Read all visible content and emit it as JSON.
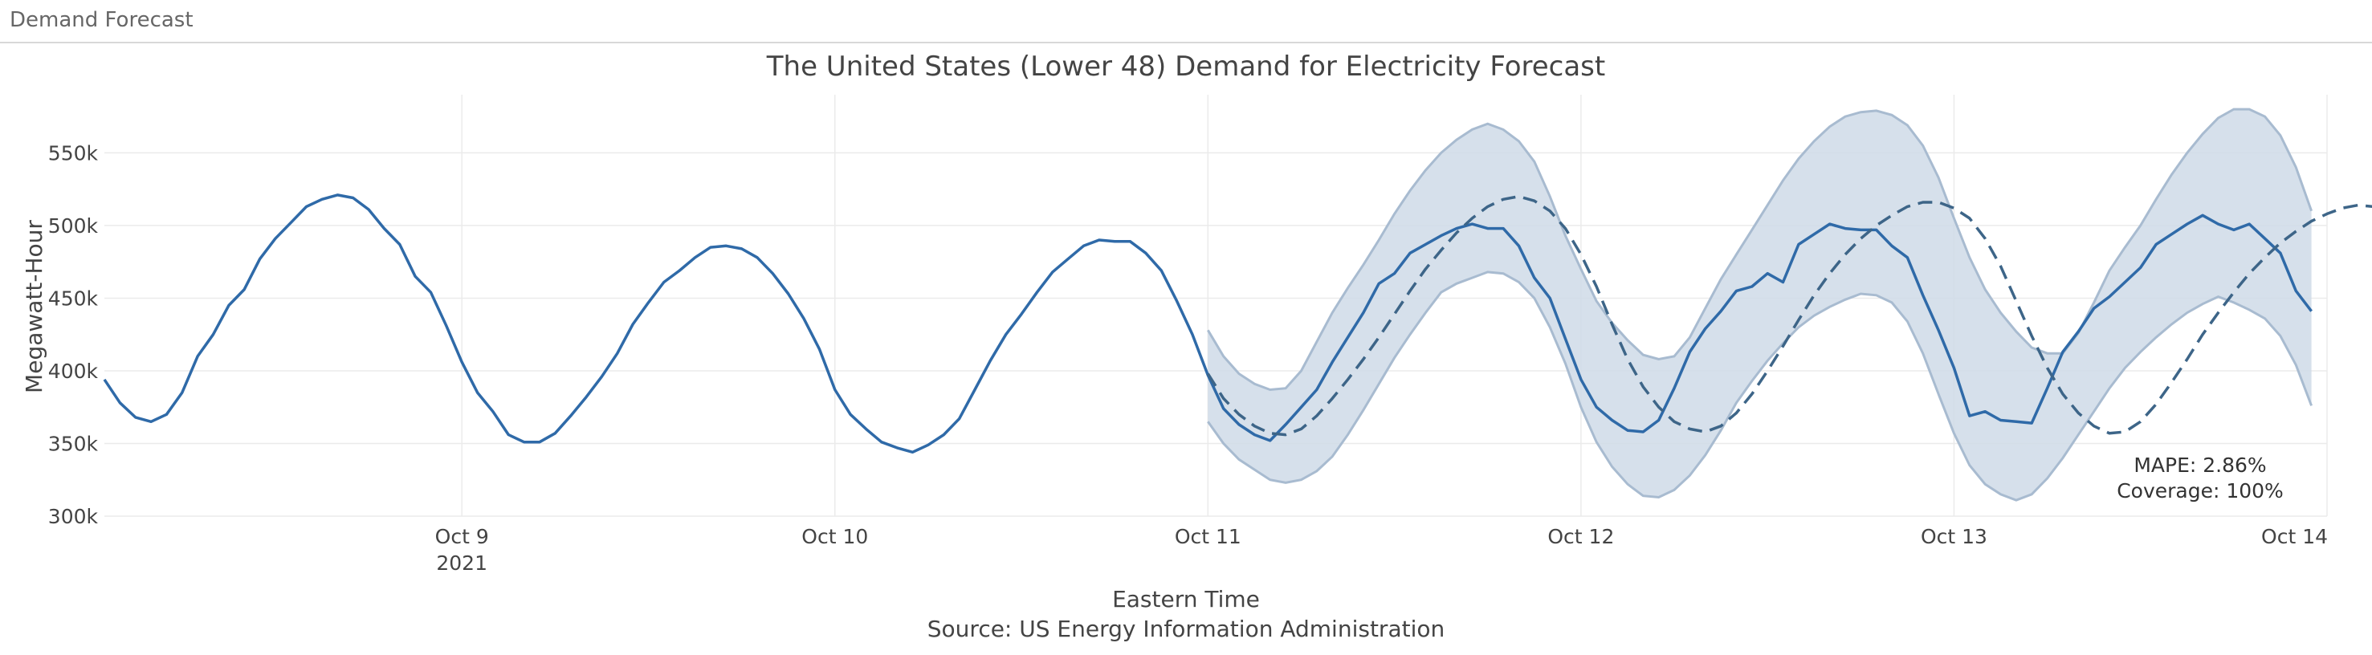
{
  "app": {
    "title": "Demand Forecast"
  },
  "chart_data": {
    "type": "line",
    "title": "The United States (Lower 48) Demand for Electricity Forecast",
    "xlabel": "Eastern Time",
    "source": "Source: US Energy Information Administration",
    "ylabel": "Megawatt-Hour",
    "x_ticks": [
      "Oct 9",
      "Oct 10",
      "Oct 11",
      "Oct 12",
      "Oct 13",
      "Oct 14"
    ],
    "x_tick_sub": "2021",
    "y_ticks": [
      "300k",
      "350k",
      "400k",
      "450k",
      "500k",
      "550k"
    ],
    "y_tick_values": [
      300000,
      350000,
      400000,
      450000,
      500000,
      550000
    ],
    "x_range": [
      "2021-10-08 01:00",
      "2021-10-14 00:00"
    ],
    "y_range": [
      300000,
      590000
    ],
    "grid": true,
    "colors": {
      "actual": "#2f6aa8",
      "forecast": "#3d6588",
      "band_fill": "#cfdbe7",
      "band_edge": "#a8bbd0"
    },
    "annotations": [
      "MAPE: 2.86%",
      "Coverage: 100%"
    ],
    "series": [
      {
        "style": "solid",
        "x_start": "2021-10-08 01:00",
        "step_hours": 1,
        "values": [
          394000,
          378000,
          368000,
          365000,
          370000,
          385000,
          410000,
          425000,
          445000,
          456000,
          477000,
          491000,
          502000,
          513000,
          518000,
          521000,
          519000,
          511000,
          498000,
          487000,
          465000,
          454000,
          431000,
          406000,
          385000,
          372000,
          356000,
          351000,
          351000,
          357000,
          369000,
          382000,
          396000,
          412000,
          432000,
          447000,
          461000,
          469000,
          478000,
          485000,
          486000,
          484000,
          478000,
          467000,
          453000,
          436000,
          415000,
          387000,
          370000,
          360000,
          351000,
          347000,
          344000,
          349000,
          356000,
          367000,
          387000,
          407000,
          425000,
          439000,
          454000,
          468000,
          477000,
          486000,
          490000,
          489000,
          489000,
          481000,
          469000,
          448000,
          425000,
          397000,
          374000,
          363000,
          356000,
          352000,
          363000,
          375000,
          387000,
          406000,
          423000,
          440000,
          460000,
          467000,
          481000,
          487000,
          493000,
          498000,
          501000,
          498000,
          498000,
          486000,
          464000,
          450000,
          422000,
          394000,
          375000,
          366000,
          359000,
          358000,
          366000,
          388000,
          413000,
          429000,
          441000,
          455000,
          458000,
          467000,
          461000,
          487000,
          494000,
          501000,
          498000,
          497000,
          497000,
          486000,
          478000,
          452000,
          428000,
          402000,
          369000,
          372000,
          366000,
          365000,
          364000,
          388000,
          413000,
          427000,
          443000,
          451000,
          461000,
          471000,
          487000,
          494000,
          501000,
          507000,
          501000,
          497000,
          501000,
          491000,
          481000,
          455000,
          441000
        ]
      },
      {
        "style": "dashed",
        "x_start": "2021-10-11 00:00",
        "step_hours": 1,
        "values": [
          398000,
          381000,
          370000,
          362000,
          357000,
          356000,
          360000,
          369000,
          381000,
          394000,
          408000,
          423000,
          439000,
          455000,
          470000,
          483000,
          495000,
          505000,
          513000,
          518000,
          520000,
          517000,
          510000,
          498000,
          480000,
          458000,
          432000,
          408000,
          389000,
          375000,
          365000,
          360000,
          358000,
          362000,
          371000,
          384000,
          400000,
          417000,
          435000,
          452000,
          467000,
          480000,
          491000,
          500000,
          507000,
          513000,
          516000,
          516000,
          512000,
          505000,
          491000,
          472000,
          448000,
          424000,
          402000,
          384000,
          371000,
          362000,
          357000,
          358000,
          365000,
          377000,
          392000,
          408000,
          425000,
          440000,
          454000,
          467000,
          478000,
          488000,
          496000,
          503000,
          508000,
          512000,
          514000,
          513000,
          508000,
          498000,
          482000,
          460000,
          440000
        ]
      }
    ],
    "band": {
      "x_start": "2021-10-11 00:00",
      "step_hours": 1,
      "upper": [
        428000,
        410000,
        398000,
        391000,
        387000,
        388000,
        400000,
        420000,
        440000,
        457000,
        473000,
        490000,
        508000,
        524000,
        538000,
        550000,
        559000,
        566000,
        570000,
        566000,
        558000,
        544000,
        520000,
        493000,
        470000,
        448000,
        433000,
        421000,
        411000,
        408000,
        410000,
        423000,
        443000,
        463000,
        480000,
        497000,
        514000,
        531000,
        546000,
        558000,
        568000,
        575000,
        578000,
        579000,
        576000,
        569000,
        555000,
        533000,
        505000,
        478000,
        456000,
        440000,
        427000,
        416000,
        412000,
        412000,
        426000,
        447000,
        469000,
        485000,
        500000,
        518000,
        535000,
        550000,
        563000,
        574000,
        580000,
        580000,
        575000,
        562000,
        540000,
        510000
      ],
      "lower": [
        365000,
        350000,
        339000,
        332000,
        325000,
        323000,
        325000,
        331000,
        341000,
        356000,
        373000,
        391000,
        409000,
        425000,
        440000,
        454000,
        460000,
        464000,
        468000,
        467000,
        461000,
        450000,
        430000,
        405000,
        375000,
        351000,
        334000,
        322000,
        314000,
        313000,
        318000,
        328000,
        342000,
        359000,
        378000,
        393000,
        407000,
        419000,
        430000,
        438000,
        444000,
        449000,
        453000,
        452000,
        447000,
        434000,
        412000,
        384000,
        357000,
        335000,
        322000,
        315000,
        311000,
        315000,
        326000,
        340000,
        356000,
        372000,
        388000,
        402000,
        413000,
        423000,
        432000,
        440000,
        446000,
        451000,
        447000,
        442000,
        436000,
        424000,
        404000,
        376000
      ]
    }
  }
}
